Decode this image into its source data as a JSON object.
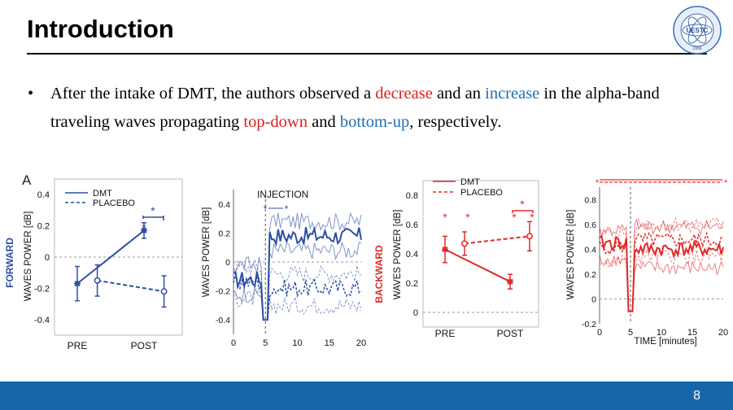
{
  "slide": {
    "title": "Introduction",
    "page_number": "8",
    "logo_text": "UESTC",
    "logo_year": "1956"
  },
  "bullet": {
    "t1": "After the intake of DMT, the authors observed a ",
    "t2": "decrease",
    "t3": " and an ",
    "t4": "increase",
    "t5": " in the alpha-band traveling waves propagating ",
    "t6": "top-down",
    "t7": " and ",
    "t8": "bottom-up",
    "t9": ", respectively."
  },
  "figure": {
    "panel_label": "A",
    "forward_label": "FORWARD",
    "backward_label": "BACKWARD",
    "ylabel": "WAVES POWER [dB]",
    "xlabel_time": "TIME [minutes]",
    "injection_label": "INJECTION",
    "legend": [
      "DMT",
      "PLACEBO"
    ],
    "star": "*"
  },
  "chart_data": [
    {
      "id": "forward-prepost",
      "type": "line",
      "categories": [
        "PRE",
        "POST"
      ],
      "ylim": [
        -0.5,
        0.5
      ],
      "yticks": [
        "0.4",
        "0.2",
        "0",
        "-0.2",
        "-0.4"
      ],
      "ytick_values": [
        0.4,
        0.2,
        0,
        -0.2,
        -0.4
      ],
      "color": "#2c4fa3",
      "series": [
        {
          "name": "DMT",
          "style": "solid",
          "x": [
            0,
            1
          ],
          "values": [
            -0.17,
            0.17
          ],
          "err": [
            0.11,
            0.05
          ]
        },
        {
          "name": "PLACEBO",
          "style": "dashed",
          "x": [
            0.3,
            1.3
          ],
          "values": [
            -0.15,
            -0.22
          ],
          "err": [
            0.1,
            0.1
          ]
        }
      ]
    },
    {
      "id": "forward-time",
      "type": "line",
      "xlim": [
        0,
        20
      ],
      "xticks": [
        "0",
        "5",
        "10",
        "15",
        "20"
      ],
      "ylim": [
        -0.5,
        0.5
      ],
      "yticks": [
        "0.4",
        "0.2",
        "0",
        "-0.2",
        "-0.4"
      ],
      "ytick_values": [
        0.4,
        0.2,
        0,
        -0.2,
        -0.4
      ],
      "injection_minute": 5,
      "color": "#2c4fa3"
    },
    {
      "id": "backward-prepost",
      "type": "line",
      "categories": [
        "PRE",
        "POST"
      ],
      "ylim": [
        -0.1,
        0.9
      ],
      "yticks": [
        "0.8",
        "0.6",
        "0.4",
        "0.2",
        "0"
      ],
      "ytick_values": [
        0.8,
        0.6,
        0.4,
        0.2,
        0
      ],
      "color": "#e02a2a",
      "series": [
        {
          "name": "DMT",
          "style": "solid",
          "x": [
            0,
            1
          ],
          "values": [
            0.43,
            0.21
          ],
          "err": [
            0.09,
            0.05
          ]
        },
        {
          "name": "PLACEBO",
          "style": "dashed",
          "x": [
            0.3,
            1.3
          ],
          "values": [
            0.47,
            0.52
          ],
          "err": [
            0.08,
            0.1
          ]
        }
      ]
    },
    {
      "id": "backward-time",
      "type": "line",
      "xlim": [
        0,
        20
      ],
      "xticks": [
        "0",
        "5",
        "10",
        "15",
        "20"
      ],
      "xlabel": "TIME [minutes]",
      "ylim": [
        -0.2,
        0.9
      ],
      "yticks": [
        "0.8",
        "0.6",
        "0.4",
        "0.2",
        "0",
        "-0.2"
      ],
      "ytick_values": [
        0.8,
        0.6,
        0.4,
        0.2,
        0,
        -0.2
      ],
      "injection_minute": 5,
      "color": "#e02a2a"
    }
  ]
}
